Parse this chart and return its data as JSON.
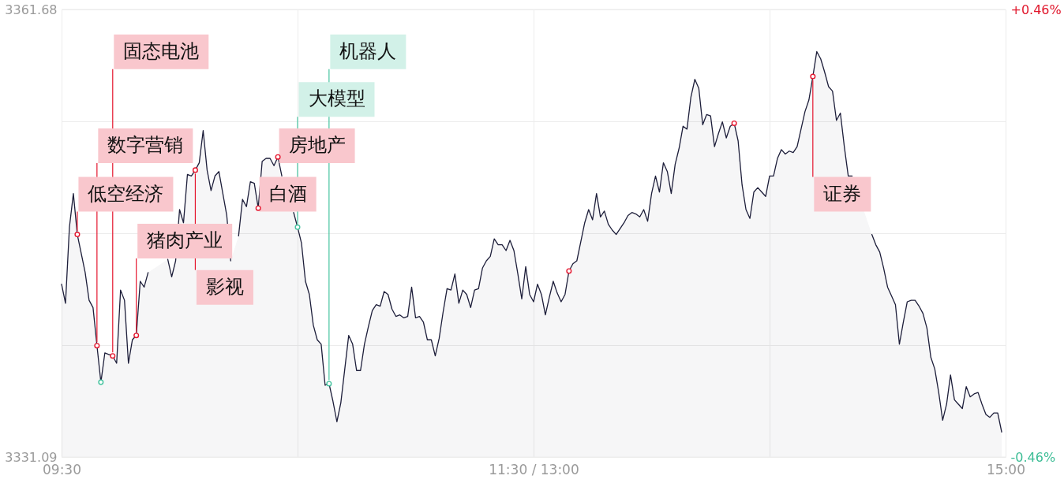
{
  "chart_data": {
    "type": "area",
    "categories": [
      "09:30",
      null,
      null,
      null,
      null,
      null,
      null,
      null,
      null,
      null,
      null,
      null,
      null,
      null,
      null,
      null,
      null,
      null,
      null,
      null,
      null,
      null,
      null,
      null,
      null,
      null,
      null,
      null,
      null,
      null,
      null,
      null,
      null,
      null,
      null,
      null,
      null,
      null,
      null,
      null,
      null,
      null,
      null,
      null,
      null,
      null,
      null,
      null,
      null,
      null,
      null,
      null,
      null,
      null,
      null,
      null,
      null,
      null,
      null,
      null,
      null,
      null,
      null,
      null,
      null,
      null,
      null,
      null,
      null,
      null,
      null,
      null,
      null,
      null,
      null,
      null,
      null,
      null,
      null,
      null,
      null,
      null,
      null,
      null,
      null,
      null,
      null,
      null,
      null,
      null,
      null,
      null,
      null,
      null,
      null,
      null,
      null,
      null,
      null,
      null,
      null,
      null,
      null,
      null,
      null,
      null,
      null,
      null,
      null,
      null,
      null,
      null,
      null,
      null,
      null,
      null,
      null,
      null,
      null,
      null,
      "11:30 / 13:00",
      null,
      null,
      null,
      null,
      null,
      null,
      null,
      null,
      null,
      null,
      null,
      null,
      null,
      null,
      null,
      null,
      null,
      null,
      null,
      null,
      null,
      null,
      null,
      null,
      null,
      null,
      null,
      null,
      null,
      null,
      null,
      null,
      null,
      null,
      null,
      null,
      null,
      null,
      null,
      null,
      null,
      null,
      null,
      null,
      null,
      null,
      null,
      null,
      null,
      null,
      null,
      null,
      null,
      null,
      null,
      null,
      null,
      null,
      null,
      null,
      null,
      null,
      null,
      null,
      null,
      null,
      null,
      null,
      null,
      null,
      null,
      null,
      null,
      null,
      null,
      null,
      null,
      null,
      null,
      null,
      null,
      null,
      null,
      null,
      null,
      null,
      null,
      null,
      null,
      null,
      null,
      null,
      null,
      null,
      null,
      null,
      null,
      null,
      null,
      null,
      null,
      null,
      null,
      null,
      null,
      null,
      null,
      null,
      null,
      null,
      null,
      null,
      null,
      null,
      null,
      null,
      null,
      null,
      null,
      "15:00"
    ],
    "ylim": [
      3331.09,
      3361.68
    ],
    "yticks": [
      3331.09,
      {
        "value": 3338.74,
        "label": null
      },
      {
        "value": 3346.385,
        "label": null
      },
      {
        "value": 3354.03,
        "label": null
      },
      3361.68
    ],
    "y2lim": [
      -0.46,
      0.46
    ],
    "y2ticks": [
      {
        "value": -0.46,
        "label": "-0.46%"
      },
      {
        "value": 0.46,
        "label": "+0.46%"
      }
    ],
    "grid": true,
    "series": [
      {
        "color": "#1d1e3a",
        "values": [
          3342.9,
          3341.6,
          3346.8,
          3349.1,
          3346.3,
          3345.0,
          3343.7,
          3341.8,
          3341.3,
          3338.7,
          3336.2,
          3338.2,
          3338.1,
          3338.0,
          3337.5,
          3342.5,
          3341.8,
          3337.5,
          3339.1,
          3339.4,
          3343.1,
          3342.7,
          3343.7,
          null,
          null,
          null,
          null,
          3344.6,
          3343.4,
          3344.5,
          3348.0,
          3347.1,
          3350.4,
          3350.3,
          3350.7,
          3351.2,
          3353.4,
          3350.7,
          3349.3,
          3350.3,
          3350.6,
          3349.1,
          3347.6,
          3344.5,
          null,
          3346.2,
          3348.7,
          3348.2,
          3349.9,
          3349.8,
          3348.1,
          3351.3,
          3351.5,
          3351.5,
          3351.0,
          3351.6,
          3350.3,
          null,
          null,
          3347.8,
          3346.8,
          3345.7,
          3343.1,
          3342.2,
          3340.1,
          3339.1,
          3338.8,
          3336.0,
          3336.1,
          3334.9,
          3333.5,
          3334.8,
          3337.1,
          3339.4,
          3338.8,
          3337.0,
          3337.0,
          3338.8,
          3340.0,
          3341.1,
          3341.5,
          3341.4,
          3342.4,
          3342.2,
          3341.2,
          3340.7,
          3340.8,
          3340.6,
          3340.7,
          3342.7,
          3340.6,
          3340.7,
          3340.3,
          3339.1,
          3339.1,
          3338.0,
          3339.2,
          3341.0,
          3342.6,
          3342.5,
          3343.6,
          3341.6,
          3342.5,
          3342.2,
          3341.3,
          3342.5,
          3342.6,
          3344.0,
          3344.5,
          3344.8,
          3346.0,
          3345.6,
          3345.6,
          3345.2,
          3345.9,
          3345.2,
          3343.6,
          3341.9,
          3344.1,
          3342.2,
          3341.7,
          3342.9,
          3342.2,
          3340.8,
          3342.0,
          3343.1,
          3342.3,
          3341.7,
          3342.2,
          3343.8,
          3344.3,
          3344.5,
          3345.8,
          3347.1,
          3348.0,
          3347.3,
          3349.1,
          3347.5,
          3347.9,
          3347.0,
          3346.6,
          3346.3,
          3346.7,
          3347.1,
          3347.6,
          3347.8,
          3347.7,
          3347.5,
          3348.0,
          3347.2,
          3349.1,
          3350.3,
          3349.2,
          3351.2,
          3350.6,
          3349.1,
          3351.1,
          3352.2,
          3353.7,
          3353.5,
          3355.7,
          3356.9,
          3356.3,
          3353.8,
          3354.5,
          3354.4,
          3352.3,
          3353.2,
          3354.0,
          3352.9,
          3353.7,
          3353.9,
          3352.7,
          3349.7,
          3348.0,
          3347.4,
          3349.2,
          3349.5,
          3349.2,
          3348.9,
          3350.3,
          3350.3,
          3351.5,
          3352.1,
          3351.8,
          3352.0,
          3351.9,
          3352.3,
          3353.5,
          3354.7,
          3355.5,
          3357.1,
          3358.8,
          3358.3,
          3357.4,
          3356.4,
          3356.1,
          3354.1,
          3354.6,
          3352.3,
          3350.3,
          3350.3,
          null,
          null,
          null,
          null,
          3346.3,
          3345.6,
          3345.1,
          3344.0,
          3342.7,
          3342.1,
          3341.5,
          3338.8,
          3340.3,
          3341.7,
          3341.8,
          3341.8,
          3341.4,
          3340.9,
          3339.9,
          3337.9,
          3337.1,
          3335.5,
          3333.6,
          3334.7,
          3336.7,
          3335.0,
          3334.7,
          3334.4,
          3335.9,
          3335.2,
          3335.4,
          3335.5,
          3334.7,
          3334.0,
          3333.8,
          3334.1,
          3334.1,
          3332.8,
          null
        ]
      },
      {
        "type": "scatter",
        "color": "#e5162e",
        "marker": "circle",
        "values": [
          null,
          null,
          null,
          null,
          3346.3,
          null,
          null,
          null,
          null,
          3338.7,
          null,
          null,
          null,
          3338.0,
          null,
          null,
          null,
          null,
          null,
          3339.4,
          null,
          null,
          null,
          null,
          null,
          null,
          null,
          null,
          null,
          null,
          null,
          null,
          null,
          null,
          3350.7,
          null,
          null,
          null,
          null,
          null,
          null,
          null,
          null,
          null,
          null,
          null,
          null,
          null,
          null,
          null,
          3348.1,
          null,
          null,
          null,
          null,
          3351.6,
          null,
          null,
          null,
          null,
          null,
          null,
          null,
          null,
          null,
          null,
          null,
          null,
          null,
          null,
          null,
          null,
          null,
          null,
          null,
          null,
          null,
          null,
          null,
          null,
          null,
          null,
          null,
          null,
          null,
          null,
          null,
          null,
          null,
          null,
          null,
          null,
          null,
          null,
          null,
          null,
          null,
          null,
          null,
          null,
          null,
          null,
          null,
          null,
          null,
          null,
          null,
          null,
          null,
          null,
          null,
          null,
          null,
          null,
          null,
          null,
          null,
          null,
          null,
          null,
          null,
          null,
          null,
          null,
          null,
          null,
          null,
          null,
          null,
          3343.8,
          null,
          null,
          null,
          null,
          null,
          null,
          null,
          null,
          null,
          null,
          null,
          null,
          null,
          null,
          null,
          null,
          null,
          null,
          null,
          null,
          null,
          null,
          null,
          null,
          null,
          null,
          null,
          null,
          null,
          null,
          null,
          null,
          null,
          null,
          null,
          null,
          null,
          null,
          null,
          null,
          null,
          3353.9,
          null,
          null,
          null,
          null,
          null,
          null,
          null,
          null,
          null,
          null,
          null,
          null,
          null,
          null,
          null,
          null,
          null,
          null,
          null,
          3357.1,
          null,
          null,
          null,
          null,
          null,
          null,
          null,
          null,
          null,
          null,
          null,
          null,
          null,
          null,
          null,
          null,
          null,
          null,
          null,
          null,
          null,
          null,
          null,
          null,
          null,
          null,
          null,
          null,
          null,
          null,
          null,
          null,
          null,
          null,
          null,
          null,
          null,
          null,
          null,
          null,
          null,
          null,
          null,
          null,
          null,
          null,
          null,
          null,
          null
        ],
        "value_labels": [
          null,
          null,
          null,
          null,
          "低空经济",
          null,
          null,
          null,
          null,
          "数字营销",
          null,
          null,
          null,
          "固态电池",
          null,
          null,
          null,
          null,
          null,
          "猪肉产业",
          null,
          null,
          null,
          null,
          null,
          null,
          null,
          null,
          null,
          null,
          null,
          null,
          null,
          null,
          "影视",
          null,
          null,
          null,
          null,
          null,
          null,
          null,
          null,
          null,
          null,
          null,
          null,
          null,
          null,
          null,
          "白酒",
          null,
          null,
          null,
          null,
          "房地产",
          null,
          null,
          null,
          null,
          null,
          null,
          null,
          null,
          null,
          null,
          null,
          null,
          null,
          null,
          null,
          null,
          null,
          null,
          null,
          null,
          null,
          null,
          null,
          null,
          null,
          null,
          null,
          null,
          null,
          null,
          null,
          null,
          null,
          null,
          null,
          null,
          null,
          null,
          null,
          null,
          null,
          null,
          null,
          null,
          null,
          null,
          null,
          null,
          null,
          null,
          null,
          null,
          null,
          null,
          null,
          null,
          null,
          null,
          null,
          null,
          null,
          null,
          null,
          null,
          null,
          null,
          null,
          null,
          null,
          null,
          null,
          null,
          null,
          null,
          null,
          null,
          null,
          null,
          null,
          null,
          null,
          null,
          null,
          null,
          null,
          null,
          null,
          null,
          null,
          null,
          null,
          null,
          null,
          null,
          null,
          null,
          null,
          null,
          null,
          null,
          null,
          null,
          null,
          null,
          null,
          null,
          null,
          null,
          null,
          null,
          null,
          null,
          null,
          null,
          null,
          null,
          null,
          null,
          null,
          null,
          null,
          null,
          null,
          null,
          null,
          null,
          null,
          null,
          null,
          null,
          null,
          null,
          null,
          null,
          null,
          "证券",
          null,
          null,
          null,
          null,
          null,
          null,
          null,
          null,
          null,
          null,
          null,
          null,
          null,
          null,
          null,
          null,
          null,
          null,
          null,
          null,
          null,
          null,
          null,
          null,
          null,
          null,
          null,
          null,
          null,
          null,
          null,
          null,
          null,
          null,
          null,
          null,
          null,
          null,
          null,
          null,
          null,
          null,
          null,
          null,
          null,
          null,
          null,
          null,
          null
        ]
      },
      {
        "type": "scatter",
        "color": "#45c39f",
        "marker": "circle",
        "values": [
          null,
          null,
          null,
          null,
          null,
          null,
          null,
          null,
          null,
          null,
          3336.2,
          null,
          null,
          null,
          null,
          null,
          null,
          null,
          null,
          null,
          null,
          null,
          null,
          null,
          null,
          null,
          null,
          null,
          null,
          null,
          null,
          null,
          null,
          null,
          null,
          null,
          null,
          null,
          null,
          null,
          null,
          null,
          null,
          null,
          null,
          null,
          null,
          null,
          null,
          null,
          null,
          null,
          null,
          null,
          null,
          null,
          null,
          null,
          null,
          null,
          3346.8,
          null,
          null,
          null,
          null,
          null,
          null,
          null,
          3336.1,
          null,
          null,
          null,
          null,
          null,
          null,
          null,
          null,
          null,
          null,
          null,
          null,
          null,
          null,
          null,
          null,
          null,
          null,
          null,
          null,
          null,
          null,
          null,
          null,
          null,
          null,
          null,
          null,
          null,
          null,
          null,
          null,
          null,
          null,
          null,
          null,
          null,
          null,
          null,
          null,
          null,
          null,
          null,
          null,
          null,
          null,
          null,
          null,
          null,
          null,
          null,
          null,
          null,
          null,
          null,
          null,
          null,
          null,
          null,
          null,
          null,
          null,
          null,
          null,
          null,
          null,
          null,
          null,
          null,
          null,
          null,
          null,
          null,
          null,
          null,
          null,
          null,
          null,
          null,
          null,
          null,
          null,
          null,
          null,
          null,
          null,
          null,
          null,
          null,
          null,
          null,
          null,
          null,
          null,
          null,
          null,
          null,
          null,
          null,
          null,
          null,
          null,
          null,
          null,
          null,
          null,
          null,
          null,
          null,
          null,
          null,
          null,
          null,
          null,
          null,
          null,
          null,
          null,
          null,
          null,
          null,
          null,
          null,
          null,
          null,
          null,
          null,
          null,
          null,
          null,
          null,
          null,
          null,
          null,
          null,
          null,
          null,
          null,
          null,
          null,
          null,
          null,
          null,
          null,
          null,
          null,
          null,
          null,
          null,
          null,
          null,
          null,
          null,
          null,
          null,
          null,
          null,
          null,
          null,
          null,
          null,
          null,
          null,
          null,
          null,
          null,
          null,
          null,
          null,
          null,
          null,
          null
        ],
        "value_labels": [
          null,
          null,
          null,
          null,
          null,
          null,
          null,
          null,
          null,
          null,
          null,
          null,
          null,
          null,
          null,
          null,
          null,
          null,
          null,
          null,
          null,
          null,
          null,
          null,
          null,
          null,
          null,
          null,
          null,
          null,
          null,
          null,
          null,
          null,
          null,
          null,
          null,
          null,
          null,
          null,
          null,
          null,
          null,
          null,
          null,
          null,
          null,
          null,
          null,
          null,
          null,
          null,
          null,
          null,
          null,
          null,
          null,
          null,
          null,
          null,
          "大模型",
          null,
          null,
          null,
          null,
          null,
          null,
          null,
          "机器人",
          null,
          null,
          null,
          null,
          null,
          null,
          null,
          null,
          null,
          null,
          null,
          null,
          null,
          null,
          null,
          null,
          null,
          null,
          null,
          null,
          null,
          null,
          null,
          null,
          null,
          null,
          null,
          null,
          null,
          null,
          null,
          null,
          null,
          null,
          null,
          null,
          null,
          null,
          null,
          null,
          null,
          null,
          null,
          null,
          null,
          null,
          null,
          null,
          null,
          null,
          null,
          null,
          null,
          null,
          null,
          null,
          null,
          null,
          null,
          null,
          null,
          null,
          null,
          null,
          null,
          null,
          null,
          null,
          null,
          null,
          null,
          null,
          null,
          null,
          null,
          null,
          null,
          null,
          null,
          null,
          null,
          null,
          null,
          null,
          null,
          null,
          null,
          null,
          null,
          null,
          null,
          null,
          null,
          null,
          null,
          null,
          null,
          null,
          null,
          null,
          null,
          null,
          null,
          null,
          null,
          null,
          null,
          null,
          null,
          null,
          null,
          null,
          null,
          null,
          null,
          null,
          null,
          null,
          null,
          null,
          null,
          null,
          null,
          null,
          null,
          null,
          null,
          null,
          null,
          null,
          null,
          null,
          null,
          null,
          null,
          null,
          null,
          null,
          null,
          null,
          null,
          null,
          null,
          null,
          null,
          null,
          null,
          null,
          null,
          null,
          null,
          null,
          null,
          null,
          null,
          null,
          null,
          null,
          null,
          null,
          null,
          null,
          null,
          null,
          null,
          null,
          null,
          null,
          null,
          null,
          null,
          null
        ]
      }
    ]
  }
}
